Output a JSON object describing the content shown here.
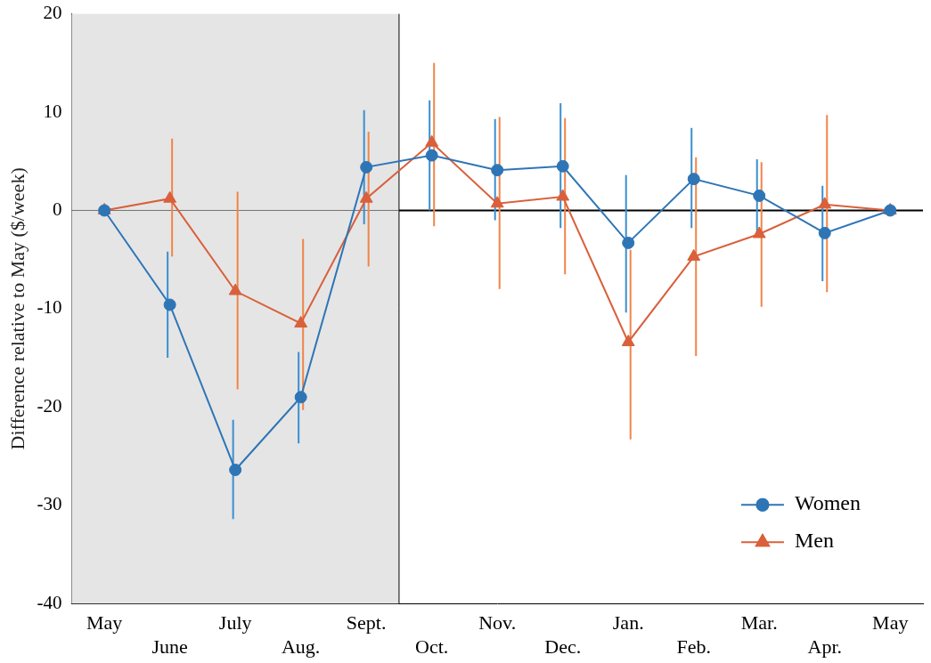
{
  "chart_data": {
    "type": "line",
    "y_label": "Difference relative to May ($/week)",
    "categories": [
      "May",
      "June",
      "July",
      "Aug.",
      "Sept.",
      "Oct.",
      "Nov.",
      "Dec.",
      "Jan.",
      "Feb.",
      "Mar.",
      "Apr.",
      "May"
    ],
    "ylim": [
      -40,
      20
    ],
    "yticks": [
      -40,
      -30,
      -20,
      -10,
      0,
      10,
      20
    ],
    "grid": false,
    "legend": "lower right",
    "series": [
      {
        "name": "Women",
        "color": "#2e75b6",
        "marker": "circle",
        "line_style": "solid",
        "values": [
          0,
          -9.6,
          -26.4,
          -19.0,
          4.4,
          5.6,
          4.1,
          4.5,
          -3.3,
          3.2,
          1.5,
          -2.3,
          0
        ],
        "error_upper": [
          null,
          -4.2,
          -21.3,
          -14.4,
          10.2,
          11.2,
          9.3,
          10.9,
          3.6,
          8.4,
          5.2,
          2.5,
          null
        ],
        "error_lower": [
          null,
          -15.0,
          -31.4,
          -23.7,
          -1.4,
          0,
          -1.0,
          -1.8,
          -10.4,
          -1.8,
          -2.7,
          -7.2,
          null
        ]
      },
      {
        "name": "Men",
        "color": "#d9603b",
        "marker": "triangle",
        "line_style": "solid",
        "values": [
          0,
          1.2,
          -8.2,
          -11.5,
          1.2,
          6.9,
          0.7,
          1.4,
          -13.4,
          -4.7,
          -2.4,
          0.6,
          0
        ],
        "error_upper": [
          null,
          7.3,
          1.9,
          -2.9,
          8.0,
          15.0,
          9.5,
          9.4,
          -4.0,
          5.4,
          4.9,
          9.7,
          null
        ],
        "error_lower": [
          null,
          -4.7,
          -18.2,
          -20.3,
          -5.7,
          -1.6,
          -8.0,
          -6.5,
          -23.3,
          -14.8,
          -9.8,
          -8.3,
          null
        ]
      }
    ]
  }
}
